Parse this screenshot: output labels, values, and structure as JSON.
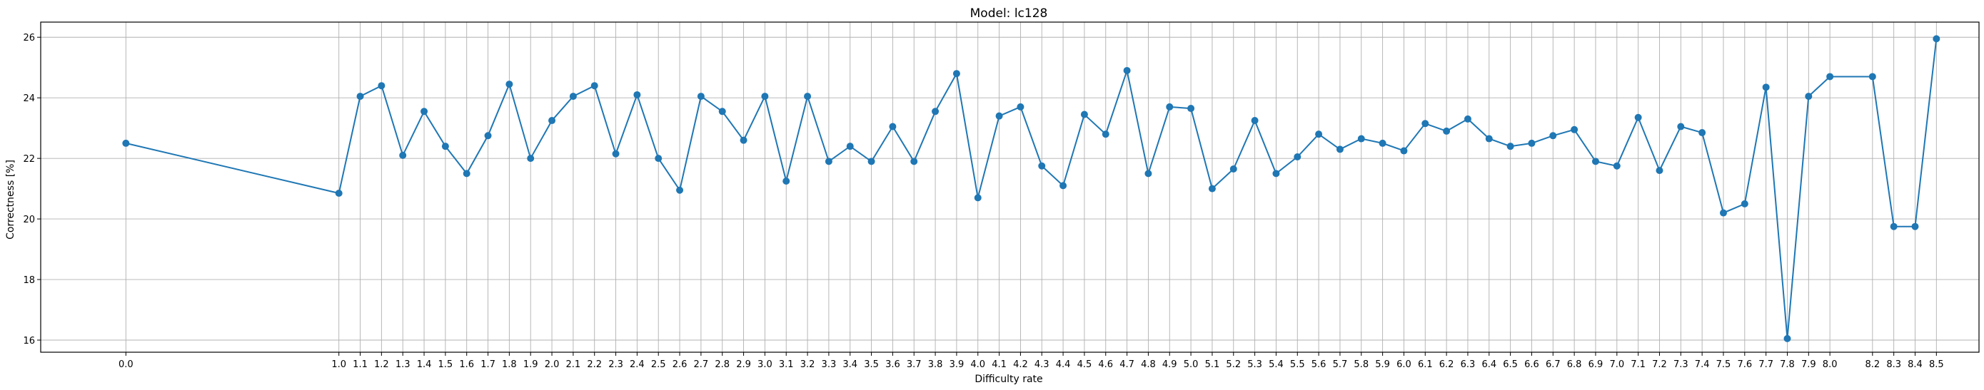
{
  "chart_data": {
    "type": "line",
    "title": "Model: lc128",
    "xlabel": "Difficulty rate",
    "ylabel": "Correctness [%]",
    "xlim": [
      -0.4,
      8.7
    ],
    "ylim": [
      15.6,
      26.5
    ],
    "y_ticks": [
      16,
      18,
      20,
      22,
      24,
      26
    ],
    "grid": true,
    "color": "#1f77b4",
    "x": [
      0.0,
      1.0,
      1.1,
      1.2,
      1.3,
      1.4,
      1.5,
      1.6,
      1.7,
      1.8,
      1.9,
      2.0,
      2.1,
      2.2,
      2.3,
      2.4,
      2.5,
      2.6,
      2.7,
      2.8,
      2.9,
      3.0,
      3.1,
      3.2,
      3.3,
      3.4,
      3.5,
      3.6,
      3.7,
      3.8,
      3.9,
      4.0,
      4.1,
      4.2,
      4.3,
      4.4,
      4.5,
      4.6,
      4.7,
      4.8,
      4.9,
      5.0,
      5.1,
      5.2,
      5.3,
      5.4,
      5.5,
      5.6,
      5.7,
      5.8,
      5.9,
      6.0,
      6.1,
      6.2,
      6.3,
      6.4,
      6.5,
      6.6,
      6.7,
      6.8,
      6.9,
      7.0,
      7.1,
      7.2,
      7.3,
      7.4,
      7.5,
      7.6,
      7.7,
      7.8,
      7.9,
      8.0,
      8.2,
      8.3,
      8.4,
      8.5
    ],
    "x_tick_labels": [
      "0.0",
      "1.0",
      "1.1",
      "1.2",
      "1.3",
      "1.4",
      "1.5",
      "1.6",
      "1.7",
      "1.8",
      "1.9",
      "2.0",
      "2.1",
      "2.2",
      "2.3",
      "2.4",
      "2.5",
      "2.6",
      "2.7",
      "2.8",
      "2.9",
      "3.0",
      "3.1",
      "3.2",
      "3.3",
      "3.4",
      "3.5",
      "3.6",
      "3.7",
      "3.8",
      "3.9",
      "4.0",
      "4.1",
      "4.2",
      "4.3",
      "4.4",
      "4.5",
      "4.6",
      "4.7",
      "4.8",
      "4.9",
      "5.0",
      "5.1",
      "5.2",
      "5.3",
      "5.4",
      "5.5",
      "5.6",
      "5.7",
      "5.8",
      "5.9",
      "6.0",
      "6.1",
      "6.2",
      "6.3",
      "6.4",
      "6.5",
      "6.6",
      "6.7",
      "6.8",
      "6.9",
      "7.0",
      "7.1",
      "7.2",
      "7.3",
      "7.4",
      "7.5",
      "7.6",
      "7.7",
      "7.8",
      "7.9",
      "8.0",
      "8.2",
      "8.3",
      "8.4",
      "8.5"
    ],
    "y": [
      22.5,
      20.85,
      24.05,
      24.4,
      22.1,
      23.55,
      22.4,
      21.5,
      22.75,
      24.45,
      22.0,
      23.25,
      24.05,
      24.4,
      22.15,
      24.1,
      22.0,
      20.95,
      24.05,
      23.55,
      22.6,
      24.05,
      21.25,
      24.05,
      21.9,
      22.4,
      21.9,
      23.05,
      21.9,
      23.55,
      24.8,
      20.7,
      23.4,
      23.7,
      21.75,
      21.1,
      23.45,
      22.8,
      24.9,
      21.5,
      23.7,
      23.65,
      21.0,
      21.65,
      23.25,
      21.5,
      22.05,
      22.8,
      22.3,
      22.65,
      22.5,
      22.25,
      23.15,
      22.9,
      23.3,
      22.65,
      22.4,
      22.5,
      22.75,
      22.95,
      21.9,
      21.75,
      23.35,
      21.6,
      23.05,
      22.85,
      20.2,
      20.5,
      24.35,
      16.05,
      24.05,
      24.7,
      24.7,
      19.75,
      19.75,
      25.95
    ]
  }
}
